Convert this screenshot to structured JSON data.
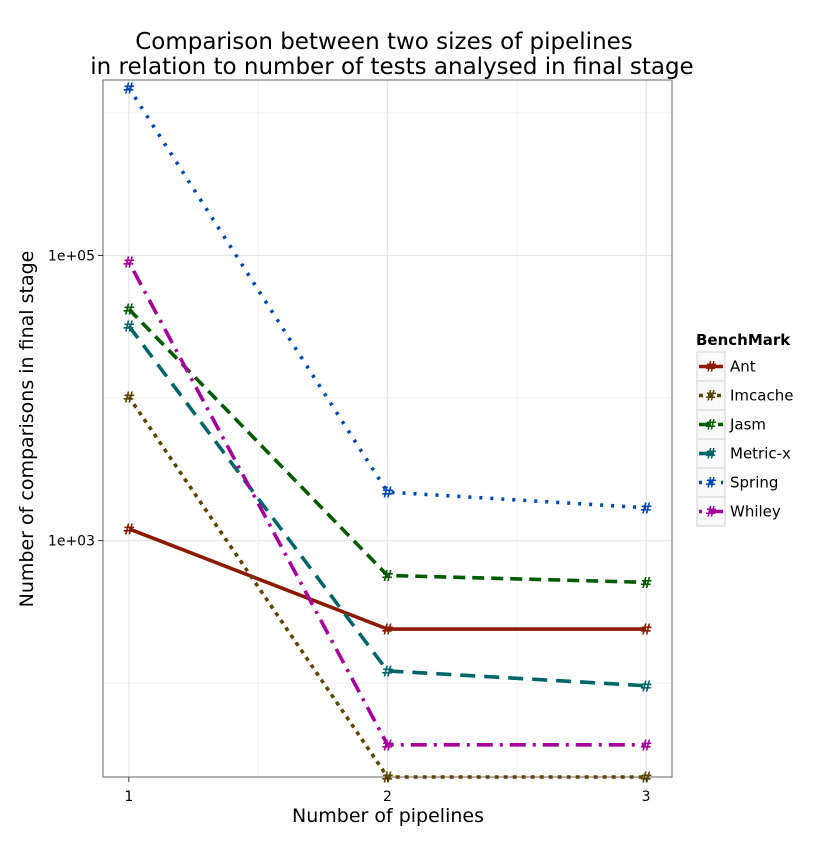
{
  "chart_data": {
    "type": "line",
    "title_line1": "Comparison between two sizes of pipelines",
    "title_line2": "in relation to number of tests analysed in final stage",
    "xlabel": "Number of pipelines",
    "ylabel": "Number of comparisons in final stage",
    "x": [
      1,
      2,
      3
    ],
    "x_ticks": [
      "1",
      "2",
      "3"
    ],
    "y_scale": "log10",
    "y_ticks": [
      {
        "value": 1000,
        "label": "1e+03"
      },
      {
        "value": 100000,
        "label": "1e+05"
      }
    ],
    "ylim": [
      22,
      1700000
    ],
    "xlim": [
      0.9,
      3.1
    ],
    "grid": true,
    "marker_glyph": "#",
    "legend_title": "BenchMark",
    "legend_position": "right",
    "series": [
      {
        "name": "Ant",
        "color": "#8B1A00",
        "dash": "solid",
        "values": [
          1210,
          240,
          240
        ]
      },
      {
        "name": "Imcache",
        "color": "#5C4500",
        "dash": "dotted",
        "values": [
          10200,
          22,
          22
        ]
      },
      {
        "name": "Jasm",
        "color": "#005A00",
        "dash": "dashed",
        "values": [
          42000,
          570,
          510
        ]
      },
      {
        "name": "Metric-x",
        "color": "#00666A",
        "dash": "longdash",
        "values": [
          32000,
          122,
          96
        ]
      },
      {
        "name": "Spring",
        "color": "#0047B3",
        "dash": "dotted2",
        "values": [
          1500000,
          2190,
          1700
        ]
      },
      {
        "name": "Whiley",
        "color": "#A8009C",
        "dash": "dotdash",
        "values": [
          90000,
          37,
          37
        ]
      }
    ]
  }
}
